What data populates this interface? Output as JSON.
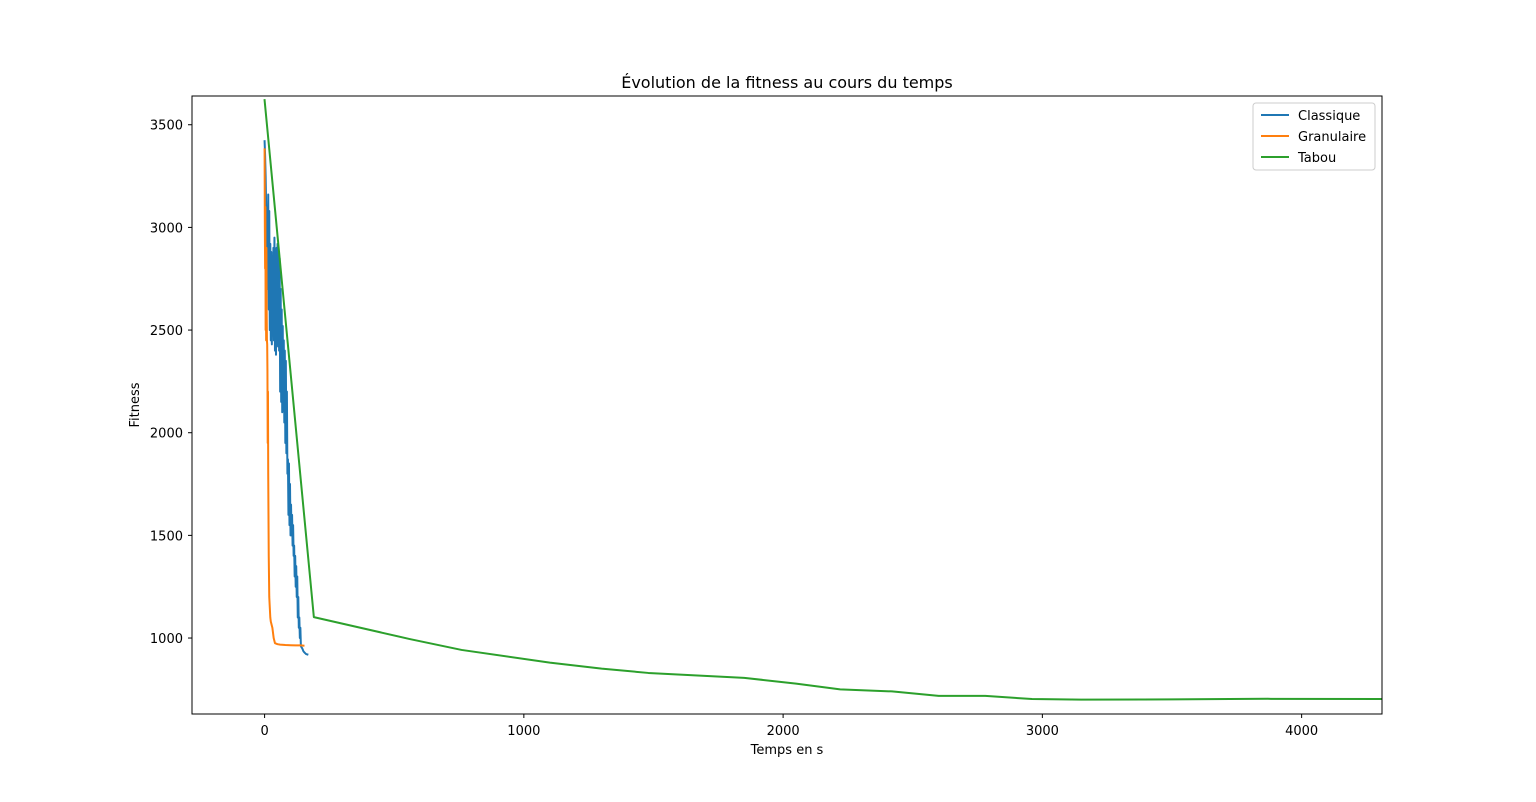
{
  "chart_data": {
    "type": "line",
    "title": "Évolution de la fitness au cours du temps",
    "xlabel": "Temps en s",
    "ylabel": "Fitness",
    "xlim": [
      -280,
      4310
    ],
    "ylim": [
      630,
      3640
    ],
    "xticks": [
      0,
      1000,
      2000,
      3000,
      4000
    ],
    "yticks": [
      1000,
      1500,
      2000,
      2500,
      3000,
      3500
    ],
    "grid": false,
    "legend_position": "top-right",
    "series": [
      {
        "name": "Classique",
        "color": "#1f77b4",
        "x": [
          0,
          2,
          4,
          6,
          8,
          10,
          12,
          14,
          16,
          18,
          20,
          22,
          24,
          26,
          28,
          30,
          32,
          34,
          36,
          38,
          40,
          42,
          44,
          46,
          48,
          50,
          52,
          54,
          56,
          58,
          60,
          62,
          64,
          66,
          68,
          70,
          72,
          74,
          76,
          78,
          80,
          82,
          84,
          86,
          88,
          90,
          92,
          94,
          96,
          98,
          100,
          102,
          104,
          106,
          108,
          110,
          112,
          114,
          116,
          118,
          120,
          122,
          124,
          126,
          128,
          130,
          132,
          134,
          136,
          138,
          140,
          145,
          150,
          155,
          160,
          165
        ],
        "y": [
          3420,
          3350,
          3250,
          3100,
          2950,
          2800,
          2700,
          3160,
          2600,
          3080,
          2500,
          2920,
          2450,
          2880,
          2430,
          2860,
          2480,
          2900,
          2450,
          2950,
          2400,
          2850,
          2380,
          2900,
          2500,
          2920,
          2420,
          2870,
          2400,
          2850,
          2200,
          2700,
          2150,
          2600,
          2100,
          2520,
          2150,
          2450,
          2050,
          2400,
          1950,
          2350,
          1900,
          2200,
          1800,
          1870,
          1600,
          1850,
          1550,
          1750,
          1500,
          1650,
          1500,
          1600,
          1450,
          1550,
          1400,
          1450,
          1300,
          1400,
          1250,
          1350,
          1200,
          1300,
          1100,
          1200,
          1050,
          1100,
          1000,
          1050,
          960,
          950,
          935,
          928,
          922,
          920
        ]
      },
      {
        "name": "Granulaire",
        "color": "#ff7f0e",
        "x": [
          0,
          1,
          2,
          3,
          4,
          5,
          6,
          7,
          8,
          9,
          10,
          11,
          12,
          13,
          14,
          15,
          16,
          18,
          20,
          22,
          24,
          26,
          28,
          30,
          35,
          40,
          50,
          60,
          80,
          100,
          120,
          140,
          150
        ],
        "y": [
          3380,
          3000,
          2800,
          3100,
          2500,
          2700,
          2450,
          2900,
          2600,
          2450,
          2430,
          2300,
          1950,
          2200,
          1800,
          1600,
          1400,
          1200,
          1150,
          1100,
          1080,
          1070,
          1060,
          1050,
          1000,
          975,
          970,
          968,
          966,
          965,
          964,
          964,
          963
        ]
      },
      {
        "name": "Tabou",
        "color": "#2ca02c",
        "x": [
          0,
          190,
          560,
          760,
          1100,
          1300,
          1480,
          1850,
          2050,
          2220,
          2420,
          2600,
          2780,
          2960,
          3150,
          3500,
          3870,
          4310
        ],
        "y": [
          3620,
          1102,
          995,
          942,
          880,
          851,
          830,
          806,
          778,
          750,
          740,
          718,
          718,
          703,
          700,
          701,
          704,
          703
        ]
      }
    ]
  }
}
